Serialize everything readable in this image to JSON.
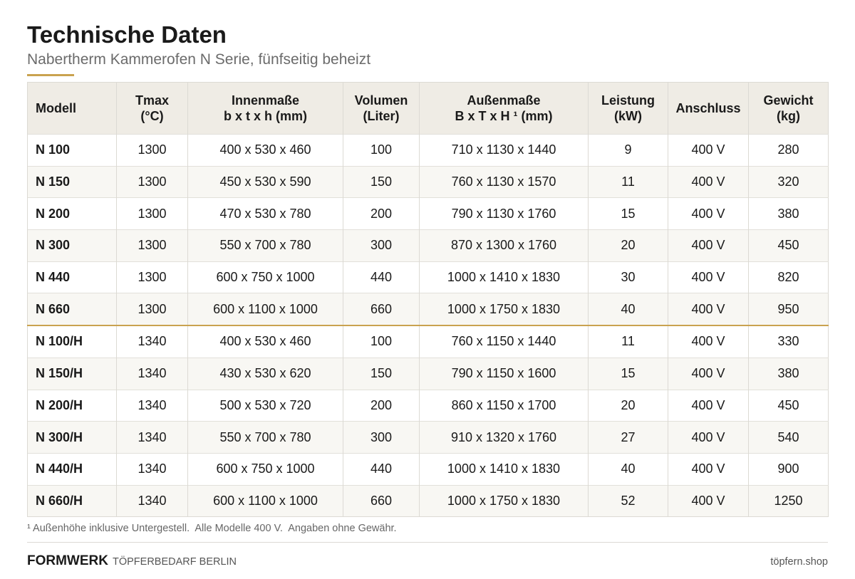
{
  "header": {
    "title": "Technische Daten",
    "subtitle": "Nabertherm Kammerofen N Serie, fünfseitig beheizt"
  },
  "table": {
    "columns": [
      "Modell",
      "Tmax\n(°C)",
      "Innenmaße\nb x t x h (mm)",
      "Volumen\n(Liter)",
      "Außenmaße\nB x T x H ¹ (mm)",
      "Leistung\n(kW)",
      "Anschluss",
      "Gewicht\n(kg)"
    ],
    "groups": [
      [
        [
          "N 100",
          "1300",
          "400 x 530 x 460",
          "100",
          "710 x 1130 x 1440",
          "9",
          "400 V",
          "280"
        ],
        [
          "N 150",
          "1300",
          "450 x 530 x 590",
          "150",
          "760 x 1130 x 1570",
          "11",
          "400 V",
          "320"
        ],
        [
          "N 200",
          "1300",
          "470 x 530 x 780",
          "200",
          "790 x 1130 x 1760",
          "15",
          "400 V",
          "380"
        ],
        [
          "N 300",
          "1300",
          "550 x 700 x 780",
          "300",
          "870 x 1300 x 1760",
          "20",
          "400 V",
          "450"
        ],
        [
          "N 440",
          "1300",
          "600 x 750 x 1000",
          "440",
          "1000 x 1410 x 1830",
          "30",
          "400 V",
          "820"
        ],
        [
          "N 660",
          "1300",
          "600 x 1100 x 1000",
          "660",
          "1000 x 1750 x 1830",
          "40",
          "400 V",
          "950"
        ]
      ],
      [
        [
          "N 100/H",
          "1340",
          "400 x 530 x 460",
          "100",
          "760 x 1150 x 1440",
          "11",
          "400 V",
          "330"
        ],
        [
          "N 150/H",
          "1340",
          "430 x 530 x 620",
          "150",
          "790 x 1150 x 1600",
          "15",
          "400 V",
          "380"
        ],
        [
          "N 200/H",
          "1340",
          "500 x 530 x 720",
          "200",
          "860 x 1150 x 1700",
          "20",
          "400 V",
          "450"
        ],
        [
          "N 300/H",
          "1340",
          "550 x 700 x 780",
          "300",
          "910 x 1320 x 1760",
          "27",
          "400 V",
          "540"
        ],
        [
          "N 440/H",
          "1340",
          "600 x 750 x 1000",
          "440",
          "1000 x 1410 x 1830",
          "40",
          "400 V",
          "900"
        ],
        [
          "N 660/H",
          "1340",
          "600 x 1100 x 1000",
          "660",
          "1000 x 1750 x 1830",
          "52",
          "400 V",
          "1250"
        ]
      ]
    ]
  },
  "footnote": "¹ Außenhöhe inklusive Untergestell.  Alle Modelle 400 V.  Angaben ohne Gewähr.",
  "footer": {
    "brand": "FORMWERK",
    "tagline": "TÖPFERBEDARF BERLIN",
    "url": "töpfern.shop"
  }
}
